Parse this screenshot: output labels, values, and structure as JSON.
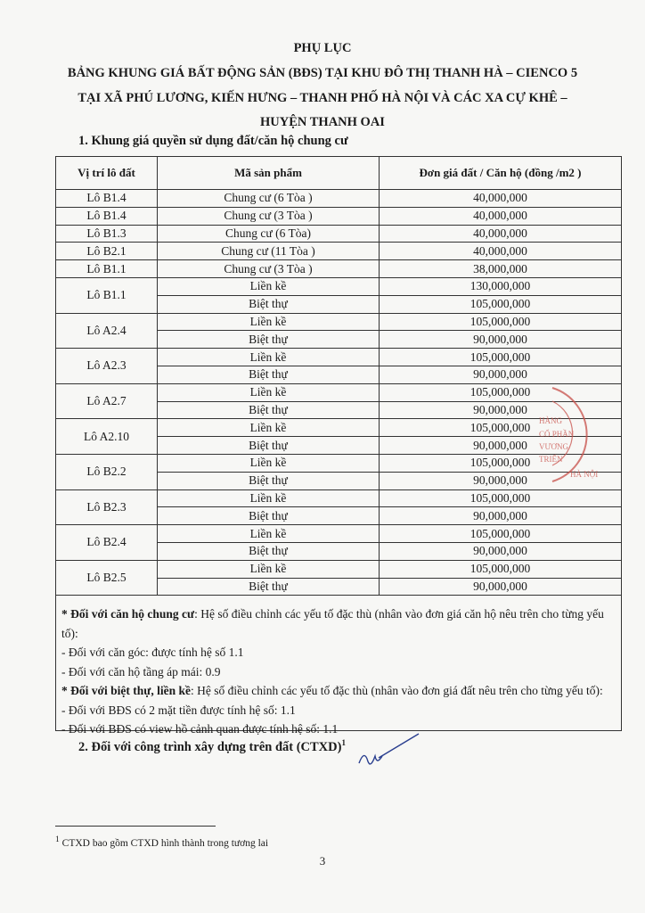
{
  "header": {
    "line1": "PHỤ LỤC",
    "line2": "BẢNG KHUNG GIÁ BẤT ĐỘNG SẢN (BĐS) TẠI KHU ĐÔ THỊ THANH HÀ – CIENCO 5",
    "line3": "TẠI XÃ PHÚ LƯƠNG, KIẾN HƯNG – THANH PHỐ HÀ NỘI VÀ CÁC XA CỰ KHÊ –",
    "line4": "HUYỆN THANH OAI"
  },
  "section1": "1.   Khung giá quyền sử dụng đất/căn hộ chung cư",
  "table": {
    "columns": [
      "Vị trí lô đất",
      "Mã sản phẩm",
      "Đơn giá đất / Căn hộ (đồng /m2 )"
    ],
    "single_rows": [
      {
        "lot": "Lô B1.4",
        "product": "Chung cư (6 Tòa )",
        "price": "40,000,000"
      },
      {
        "lot": "Lô B1.4",
        "product": "Chung cư (3 Tòa )",
        "price": "40,000,000"
      },
      {
        "lot": "Lô B1.3",
        "product": "Chung cư (6 Tòa)",
        "price": "40,000,000"
      },
      {
        "lot": "Lô B2.1",
        "product": "Chung cư (11 Tòa )",
        "price": "40,000,000"
      },
      {
        "lot": "Lô B1.1",
        "product": "Chung cư (3 Tòa )",
        "price": "38,000,000"
      }
    ],
    "groups": [
      {
        "lot": "Lô B1.1",
        "items": [
          {
            "product": "Liền kề",
            "price": "130,000,000"
          },
          {
            "product": "Biệt thự",
            "price": "105,000,000"
          }
        ]
      },
      {
        "lot": "Lô A2.4",
        "items": [
          {
            "product": "Liền kề",
            "price": "105,000,000"
          },
          {
            "product": "Biệt thự",
            "price": "90,000,000"
          }
        ]
      },
      {
        "lot": "Lô A2.3",
        "items": [
          {
            "product": "Liền kề",
            "price": "105,000,000"
          },
          {
            "product": "Biệt thự",
            "price": "90,000,000"
          }
        ]
      },
      {
        "lot": "Lô A2.7",
        "items": [
          {
            "product": "Liền kề",
            "price": "105,000,000"
          },
          {
            "product": "Biệt thự",
            "price": "90,000,000"
          }
        ]
      },
      {
        "lot": "Lô A2.10",
        "items": [
          {
            "product": "Liền kề",
            "price": "105,000,000"
          },
          {
            "product": "Biệt thự",
            "price": "90,000,000"
          }
        ]
      },
      {
        "lot": "Lô B2.2",
        "items": [
          {
            "product": "Liền kề",
            "price": "105,000,000"
          },
          {
            "product": "Biệt thự",
            "price": "90,000,000"
          }
        ]
      },
      {
        "lot": "Lô B2.3",
        "items": [
          {
            "product": "Liền kề",
            "price": "105,000,000"
          },
          {
            "product": "Biệt thự",
            "price": "90,000,000"
          }
        ]
      },
      {
        "lot": "Lô B2.4",
        "items": [
          {
            "product": "Liền kề",
            "price": "105,000,000"
          },
          {
            "product": "Biệt thự",
            "price": "90,000,000"
          }
        ]
      },
      {
        "lot": "Lô B2.5",
        "items": [
          {
            "product": "Liền kề",
            "price": "105,000,000"
          },
          {
            "product": "Biệt thự",
            "price": "90,000,000"
          }
        ]
      }
    ]
  },
  "notes": {
    "apt_bold": "* Đối với căn hộ chung cư",
    "apt_text": ": Hệ số điều chỉnh các yếu tố đặc thù (nhân vào đơn giá căn hộ nêu trên cho từng yếu tố):",
    "apt_1": "- Đối với căn góc: được tính hệ số 1.1",
    "apt_2": "- Đối với căn hộ tầng áp mái: 0.9",
    "villa_bold": "* Đối với biệt thự, liền kề",
    "villa_text": ": Hệ số điều chỉnh các yếu tố đặc thù (nhân vào đơn giá đất nêu trên cho từng yếu tố):",
    "villa_1": "- Đối với BĐS có 2 mặt tiền được tính hệ số: 1.1",
    "villa_2": "- Đối với BĐS có view hồ cảnh quan được tính hệ số: 1.1"
  },
  "section2": "2.   Đối với công trình xây dựng trên đất (CTXD)",
  "section2_sup": "1",
  "footnote": {
    "mark": "1",
    "text": " CTXD bao gồm CTXD hình thành trong tương lai"
  },
  "page_number": "3",
  "stamp": {
    "text": "CÔNG TY CỔ PHẦN ... PHÚ LƯƠNG ... TRIỂN ... HÀ NỘI",
    "color": "#c8504a"
  }
}
